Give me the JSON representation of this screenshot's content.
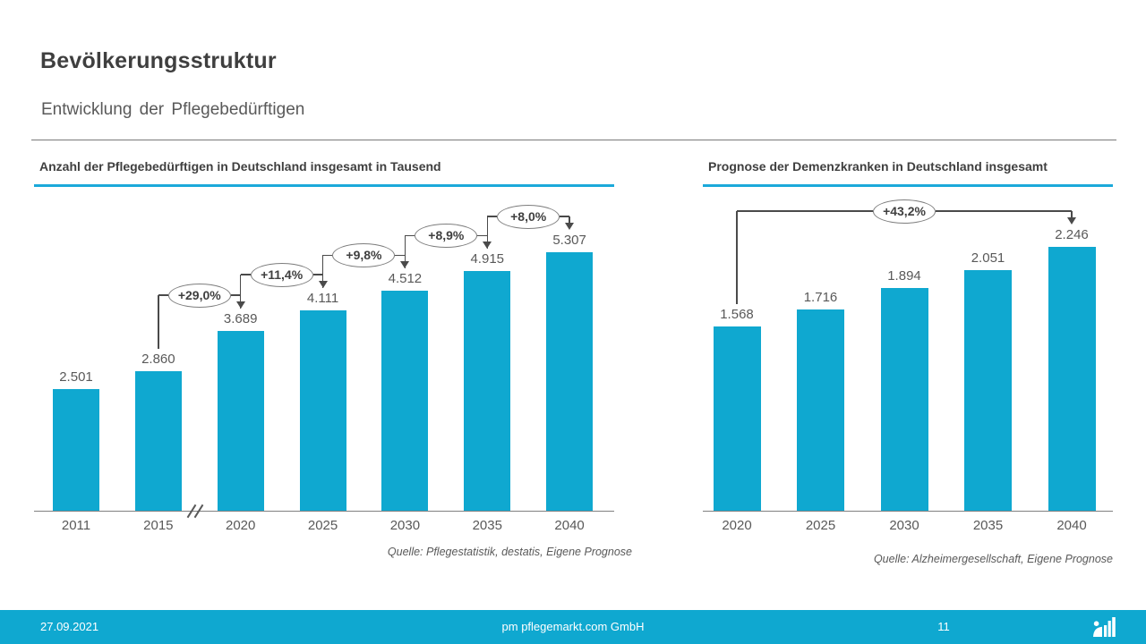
{
  "header": {
    "title": "Bevölkerungsstruktur",
    "subtitle": "Entwicklung der Pflegebedürftigen"
  },
  "chart_data": [
    {
      "type": "bar",
      "title": "Anzahl der Pflegebedürftigen in Deutschland insgesamt in Tausend",
      "categories": [
        "2011",
        "2015",
        "2020",
        "2025",
        "2030",
        "2035",
        "2040"
      ],
      "values": [
        2501,
        2860,
        3689,
        4111,
        4512,
        4915,
        5307
      ],
      "value_labels": [
        "2.501",
        "2.860",
        "3.689",
        "4.111",
        "4.512",
        "4.915",
        "5.307"
      ],
      "xlabel": "",
      "ylabel": "",
      "ylim": [
        0,
        5500
      ],
      "grid": false,
      "legend": false,
      "axis_break_between": [
        "2015",
        "2020"
      ],
      "growth_annotations": [
        {
          "from": "2015",
          "to": "2020",
          "label": "+29,0%"
        },
        {
          "from": "2020",
          "to": "2025",
          "label": "+11,4%"
        },
        {
          "from": "2025",
          "to": "2030",
          "label": "+9,8%"
        },
        {
          "from": "2030",
          "to": "2035",
          "label": "+8,9%"
        },
        {
          "from": "2035",
          "to": "2040",
          "label": "+8,0%"
        }
      ],
      "source": "Quelle: Pflegestatistik, destatis, Eigene Prognose"
    },
    {
      "type": "bar",
      "title": "Prognose der Demenzkranken in Deutschland insgesamt",
      "categories": [
        "2020",
        "2025",
        "2030",
        "2035",
        "2040"
      ],
      "values": [
        1568,
        1716,
        1894,
        2051,
        2246
      ],
      "value_labels": [
        "1.568",
        "1.716",
        "1.894",
        "2.051",
        "2.246"
      ],
      "xlabel": "",
      "ylabel": "",
      "ylim": [
        0,
        2400
      ],
      "grid": false,
      "legend": false,
      "axis_break_between": null,
      "growth_annotations": [
        {
          "from": "2020",
          "to": "2040",
          "label": "+43,2%"
        }
      ],
      "source": "Quelle: Alzheimergesellschaft, Eigene Prognose"
    }
  ],
  "footer": {
    "date": "27.09.2021",
    "company": "pm pflegemarkt.com GmbH",
    "page": "11",
    "logo": "pflegemarkt-bar-chart-logo"
  },
  "colors": {
    "bar_accent": "#0fa8d0",
    "underline_accent": "#1ba9da",
    "footer_accent": "#0fa8d0",
    "text_dark": "#3f3f3f",
    "text_gray": "#595959",
    "bracket_line": "#4a4a4a"
  }
}
